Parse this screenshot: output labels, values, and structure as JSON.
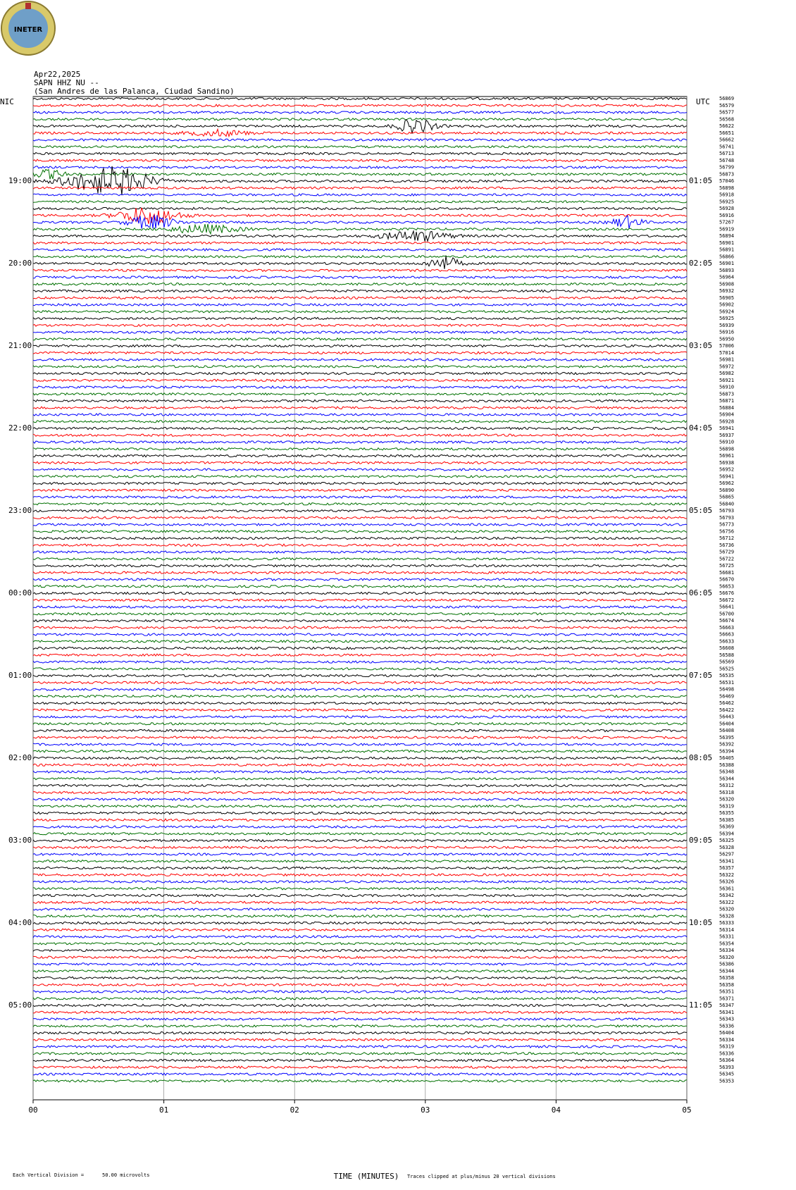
{
  "seismogram": {
    "logo": "INETER",
    "date": "Apr22,2025",
    "station": "SAPN HHZ NU --",
    "location": "(San Andres de las Palanca, Ciudad Sandino)",
    "left_zone": "NIC",
    "right_zone": "UTC",
    "left_times": [
      "19:00",
      "20:00",
      "21:00",
      "22:00",
      "23:00",
      "00:00",
      "01:00",
      "02:00",
      "03:00",
      "04:00",
      "05:00"
    ],
    "right_times": [
      "01:05",
      "02:05",
      "03:05",
      "04:05",
      "05:05",
      "06:05",
      "07:05",
      "08:05",
      "09:05",
      "10:05",
      "11:05"
    ],
    "trace_colors": [
      "#000000",
      "#ff0000",
      "#0000ff",
      "#007000"
    ],
    "trace_values": [
      56869,
      56579,
      56577,
      56568,
      56622,
      56651,
      56662,
      56741,
      56713,
      56748,
      56799,
      56873,
      57046,
      56898,
      56918,
      56925,
      56928,
      56916,
      57267,
      56919,
      56894,
      56901,
      56891,
      56866,
      56901,
      56893,
      56964,
      56908,
      56932,
      56905,
      56902,
      56924,
      56925,
      56939,
      56916,
      56950,
      57006,
      57014,
      56981,
      56972,
      56982,
      56921,
      56910,
      56873,
      56871,
      56884,
      56904,
      56928,
      56941,
      56937,
      56910,
      56898,
      56961,
      56938,
      56952,
      56941,
      56962,
      56890,
      56865,
      56840,
      56793,
      56793,
      56773,
      56756,
      56712,
      56736,
      56729,
      56722,
      56725,
      56681,
      56670,
      56653,
      56676,
      56672,
      56641,
      56700,
      56674,
      56663,
      56663,
      56633,
      56608,
      56588,
      56569,
      56525,
      56535,
      56531,
      56498,
      56469,
      56462,
      56422,
      56443,
      56404,
      56408,
      56395,
      56392,
      56394,
      56405,
      56388,
      56348,
      56344,
      56312,
      56318,
      56320,
      56319,
      56355,
      56385,
      56369,
      56394,
      56325,
      56328,
      56297,
      56341,
      56357,
      56322,
      56326,
      56361,
      56342,
      56322,
      56320,
      56328,
      56333,
      56314,
      56331,
      56354,
      56334,
      56320,
      56386,
      56344,
      56358,
      56358,
      56351,
      56371,
      56347,
      56341,
      56343,
      56336,
      56404,
      56334,
      56319,
      56336,
      56364,
      56393,
      56345,
      56353
    ],
    "x_ticks": [
      "00",
      "01",
      "02",
      "03",
      "04",
      "05"
    ],
    "x_title": "TIME (MINUTES)",
    "scale_label": "Each Vertical Division =",
    "scale_value": "50.00 microvolts",
    "clip_note": "Traces clipped at plus/minus 20 vertical divisions"
  }
}
